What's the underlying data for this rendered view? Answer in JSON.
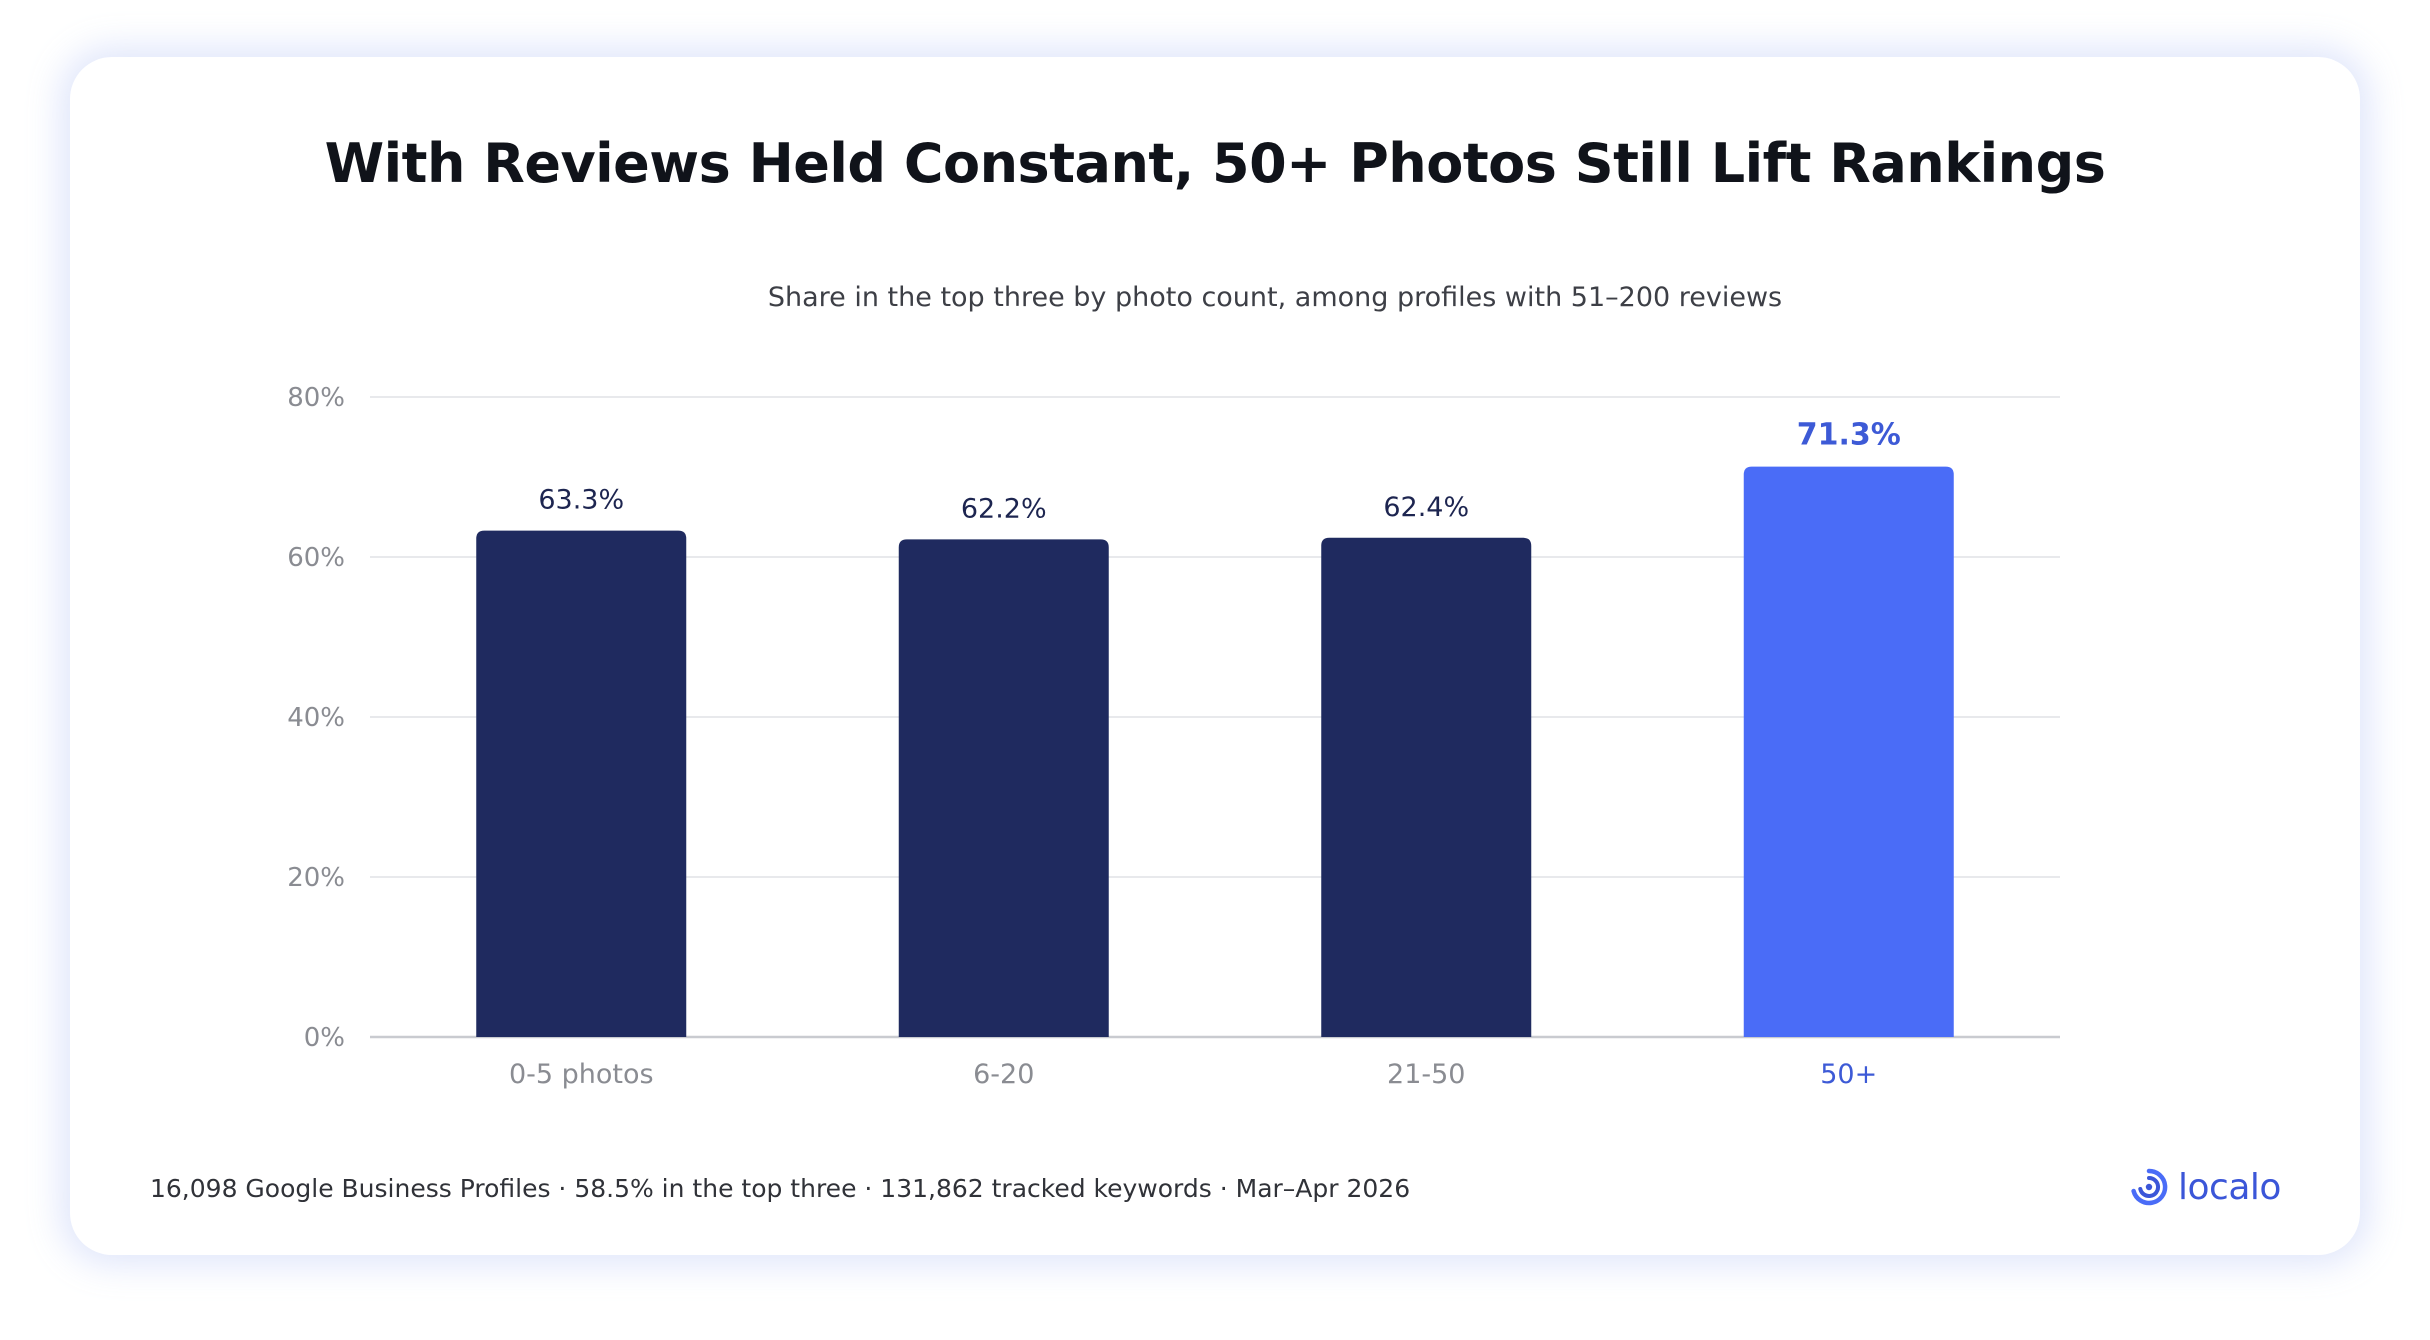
{
  "chart_data": {
    "type": "bar",
    "title": "With Reviews Held Constant, 50+ Photos Still Lift Rankings",
    "subtitle": "Share in the top three by photo count, among profiles with 51–200 reviews",
    "categories": [
      "0-5 photos",
      "6-20",
      "21-50",
      "50+"
    ],
    "values": [
      63.3,
      62.2,
      62.4,
      71.3
    ],
    "value_labels": [
      "63.3%",
      "62.2%",
      "62.4%",
      "71.3%"
    ],
    "highlight_index": 3,
    "ylim": [
      0,
      80
    ],
    "yticks": [
      0,
      20,
      40,
      60,
      80
    ],
    "ytick_labels": [
      "0%",
      "20%",
      "40%",
      "60%",
      "80%"
    ],
    "grid": true,
    "legend": "none",
    "colors": {
      "bar": "#1f2a5f",
      "highlight": "#4a6cf7",
      "highlight_label": "#3d5ad6",
      "value_label": "#1d2550",
      "tick_label": "#8a8c92",
      "grid": "#e1e2e6",
      "axis": "#c9cbd0"
    }
  },
  "footer": {
    "note": "16,098 Google Business Profiles · 58.5% in the top three · 131,862 tracked keywords · Mar–Apr 2026"
  },
  "brand": {
    "name": "localo",
    "color": "#3b56d8"
  }
}
